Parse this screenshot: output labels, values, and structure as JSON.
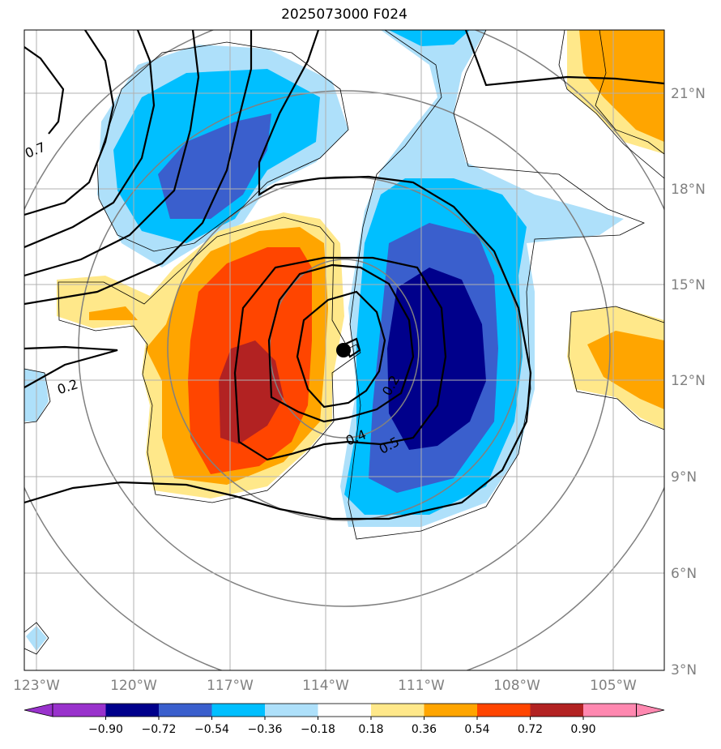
{
  "title": "2025073000 F024",
  "map": {
    "lon_ticks": [
      "123°W",
      "120°W",
      "117°W",
      "114°W",
      "111°W",
      "108°W",
      "105°W"
    ],
    "lat_ticks": [
      "21°N",
      "18°N",
      "15°N",
      "12°N",
      "9°N",
      "6°N",
      "3°N"
    ],
    "contour_labels": [
      "0.7",
      "0.2",
      "0.4",
      "0.5",
      "0.2"
    ],
    "colors": {
      "fill_pos_1": "#ffe88a",
      "fill_pos_2": "#ffa500",
      "fill_pos_3": "#ff4500",
      "fill_pos_4": "#b22222",
      "fill_neg_1": "#aee0fa",
      "fill_neg_2": "#00bfff",
      "fill_neg_3": "#3a5fcd",
      "fill_neg_4": "#00008b",
      "coast": "#000000",
      "range_rings": "#808080",
      "grid": "#b0b0b0"
    }
  },
  "colorbar": {
    "levels": [
      "−0.90",
      "−0.72",
      "−0.54",
      "−0.36",
      "−0.18",
      "0.18",
      "0.36",
      "0.54",
      "0.72",
      "0.90"
    ],
    "colors": [
      "#9932cc",
      "#00008b",
      "#3a5fcd",
      "#00bfff",
      "#aee0fa",
      "#ffffff",
      "#ffe88a",
      "#ffa500",
      "#ff4500",
      "#b22222",
      "#ff88b0"
    ]
  }
}
